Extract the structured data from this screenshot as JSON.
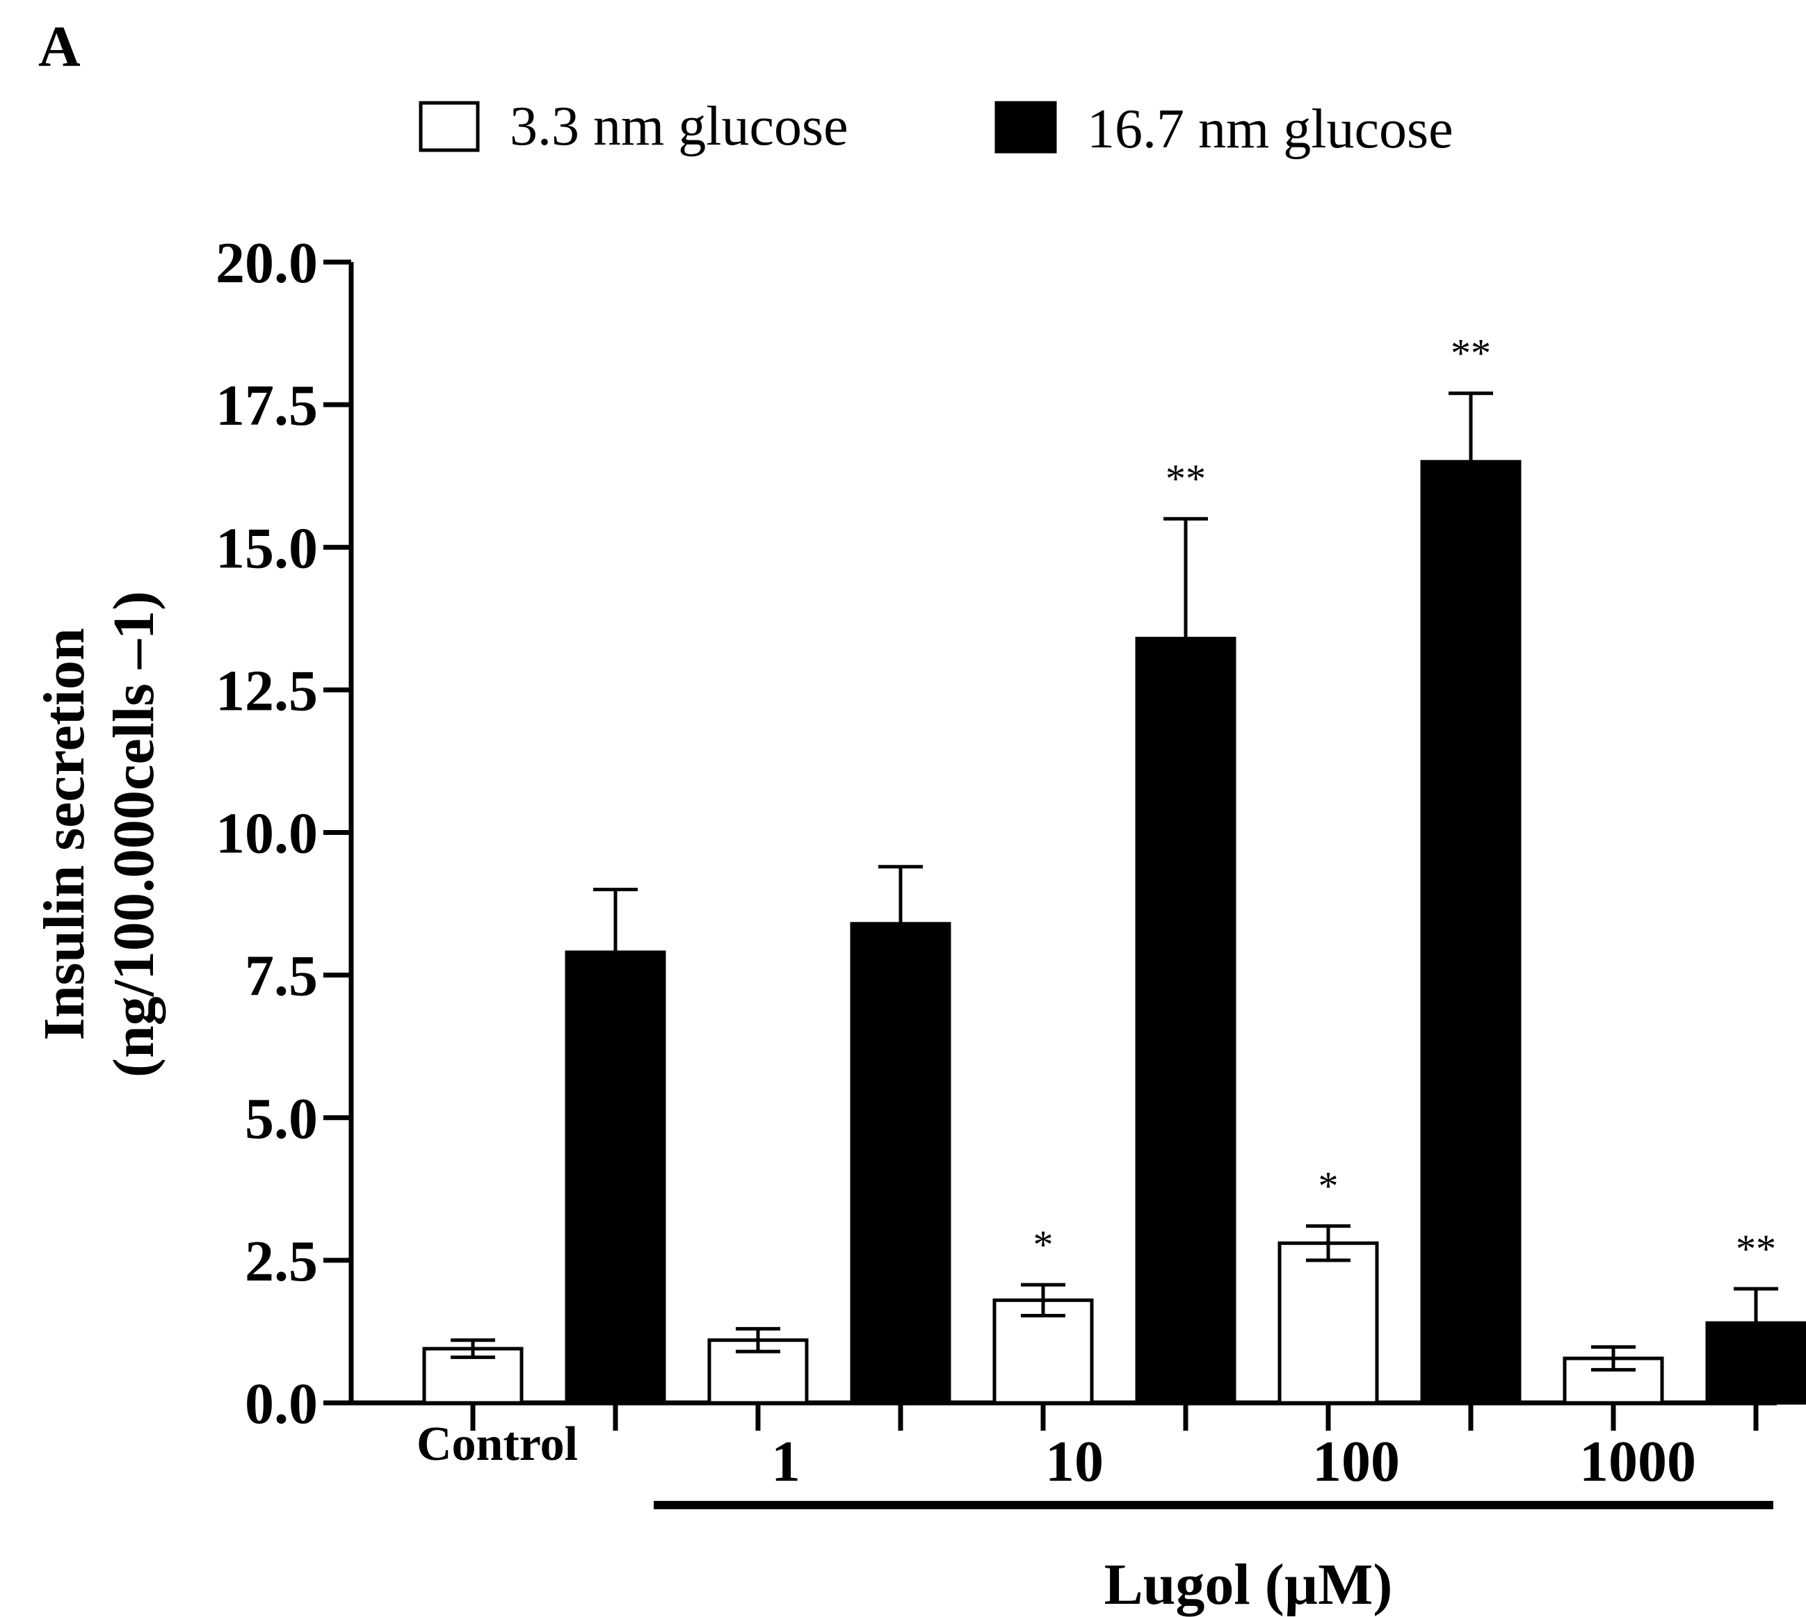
{
  "panel_label": "A",
  "colors": {
    "series1": "#ffffff",
    "series2": "#000000",
    "stroke": "#000000"
  },
  "chart_data": {
    "type": "bar",
    "title": "",
    "ylabel_line1": "Insulin secretion",
    "ylabel_line2": "(ng/100.000cells –1)",
    "xlabel": "Lugol (µM)",
    "ylim": [
      0,
      20
    ],
    "yticks": [
      "0.0",
      "2.5",
      "5.0",
      "7.5",
      "10.0",
      "12.5",
      "15.0",
      "17.5",
      "20.0"
    ],
    "categories": [
      "Control",
      "1",
      "10",
      "100",
      "1000"
    ],
    "legend_position": "top-center",
    "series": [
      {
        "name": "3.3 nm glucose",
        "fill": "white",
        "values": [
          0.95,
          1.1,
          1.8,
          2.8,
          0.78
        ],
        "errors": [
          0.15,
          0.2,
          0.27,
          0.3,
          0.2
        ],
        "sig": [
          "",
          "",
          "*",
          "*",
          ""
        ]
      },
      {
        "name": "16.7 nm glucose",
        "fill": "black",
        "values": [
          7.9,
          8.4,
          13.4,
          16.5,
          1.4
        ],
        "errors": [
          1.1,
          1.0,
          2.1,
          1.2,
          0.6
        ],
        "sig": [
          "",
          "",
          "**",
          "**",
          "**"
        ]
      }
    ]
  }
}
